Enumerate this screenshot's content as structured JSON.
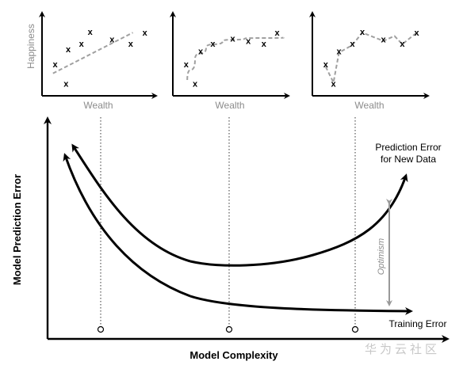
{
  "small_plots": [
    {
      "ylabel": "Happiness",
      "xlabel": "Wealth",
      "marker": "x",
      "fit": "linear",
      "points": [
        [
          1.2,
          3.8
        ],
        [
          2.2,
          1.5
        ],
        [
          2.4,
          5.6
        ],
        [
          3.6,
          6.3
        ],
        [
          4.4,
          7.7
        ],
        [
          6.4,
          6.8
        ],
        [
          8.1,
          6.3
        ],
        [
          9.4,
          7.6
        ]
      ],
      "fit_curve": [
        [
          1.0,
          2.7
        ],
        [
          8.3,
          7.6
        ]
      ]
    },
    {
      "ylabel": "",
      "xlabel": "Wealth",
      "marker": "x",
      "fit": "saturating",
      "points": [
        [
          1.2,
          3.8
        ],
        [
          2.0,
          1.5
        ],
        [
          2.5,
          5.4
        ],
        [
          3.6,
          6.3
        ],
        [
          5.4,
          6.9
        ],
        [
          6.8,
          6.6
        ],
        [
          8.2,
          6.3
        ],
        [
          9.4,
          7.6
        ]
      ],
      "fit_curve": [
        [
          1.3,
          1.9
        ],
        [
          2.0,
          4.4
        ],
        [
          3.0,
          5.8
        ],
        [
          4.5,
          6.6
        ],
        [
          6.5,
          6.9
        ],
        [
          10.0,
          7.0
        ]
      ]
    },
    {
      "ylabel": "",
      "xlabel": "Wealth",
      "marker": "x",
      "fit": "overfit",
      "points": [
        [
          1.2,
          3.8
        ],
        [
          1.9,
          1.5
        ],
        [
          2.4,
          5.4
        ],
        [
          3.6,
          6.3
        ],
        [
          4.5,
          7.7
        ],
        [
          6.4,
          6.8
        ],
        [
          8.1,
          6.3
        ],
        [
          9.4,
          7.6
        ]
      ],
      "fit_curve": [
        [
          1.2,
          3.5
        ],
        [
          1.9,
          1.6
        ],
        [
          2.4,
          5.2
        ],
        [
          3.6,
          6.1
        ],
        [
          4.5,
          7.6
        ],
        [
          6.4,
          6.6
        ],
        [
          7.4,
          7.2
        ],
        [
          8.1,
          6.2
        ],
        [
          9.4,
          7.6
        ]
      ]
    }
  ],
  "main_plot": {
    "xlabel": "Model Complexity",
    "ylabel": "Model Prediction Error",
    "prediction_label_line1": "Prediction Error",
    "prediction_label_line2": "for New Data",
    "training_label": "Training Error",
    "optimism_label": "Optimism",
    "colors": {
      "curve": "#000000",
      "arrow_gray": "#999999",
      "dotted": "#333333",
      "dashed": "#a0a0a0",
      "label_gray": "#8c8c8c"
    }
  },
  "watermark": "华为云社区"
}
